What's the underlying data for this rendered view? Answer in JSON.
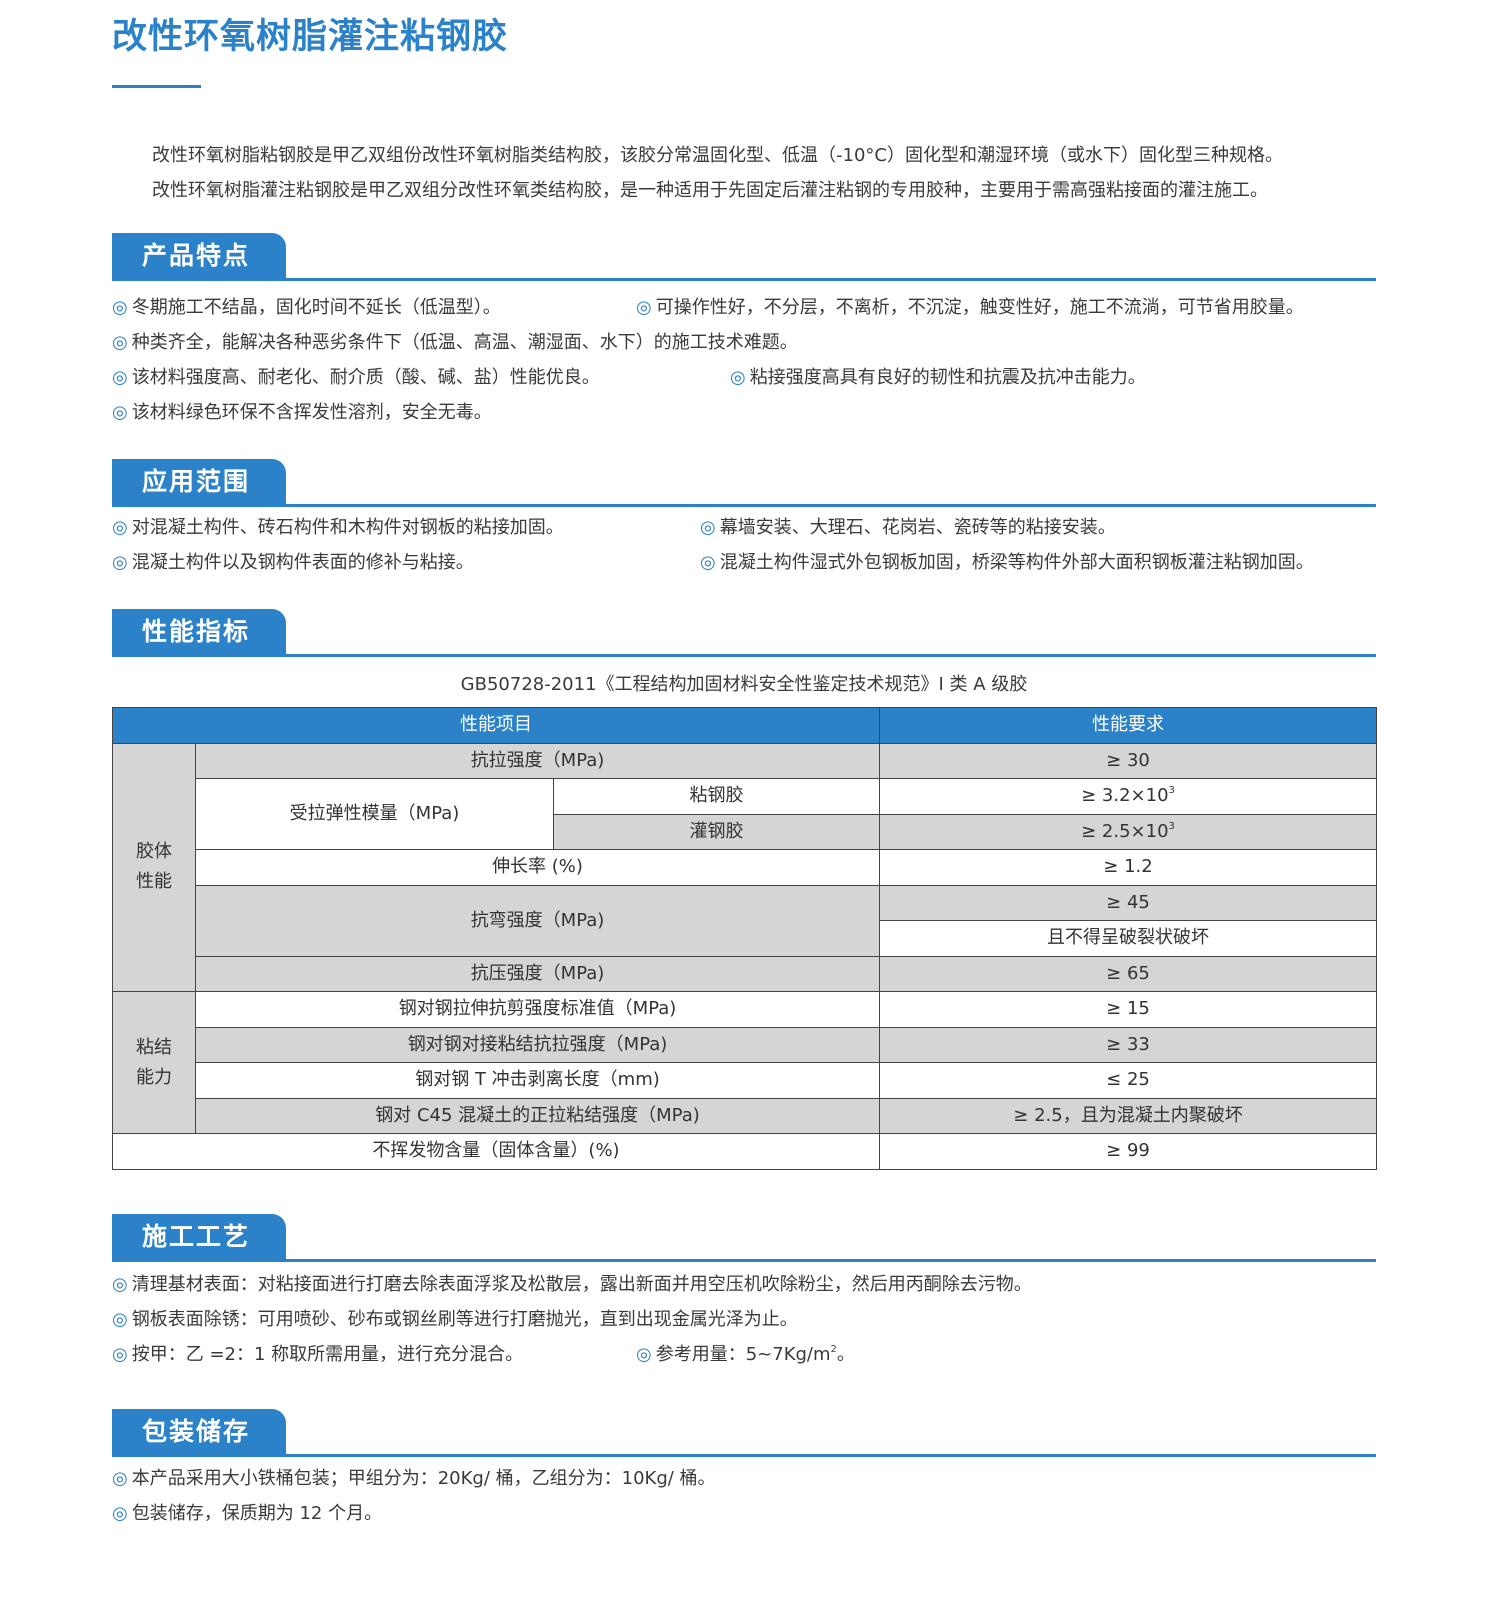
{
  "title": "改性环氧树脂灌注粘钢胶",
  "intro": [
    "改性环氧树脂粘钢胶是甲乙双组份改性环氧树脂类结构胶，该胶分常温固化型、低温（-10°C）固化型和潮湿环境（或水下）固化型三种规格。",
    "改性环氧树脂灌注粘钢胶是甲乙双组分改性环氧类结构胶，是一种适用于先固定后灌注粘钢的专用胶种，主要用于需高强粘接面的灌注施工。"
  ],
  "bullet": "◎",
  "colors": {
    "accent": "#2b82c9",
    "table_gray": "#d5d5d5"
  },
  "features": {
    "heading": "产品特点",
    "items": [
      "冬期施工不结晶，固化时间不延长（低温型）。",
      "可操作性好，不分层，不离析，不沉淀，触变性好，施工不流淌，可节省用胶量。",
      "种类齐全，能解决各种恶劣条件下（低温、高温、潮湿面、水下）的施工技术难题。",
      "该材料强度高、耐老化、耐介质（酸、碱、盐）性能优良。",
      "粘接强度高具有良好的韧性和抗震及抗冲击能力。",
      "该材料绿色环保不含挥发性溶剂，安全无毒。"
    ]
  },
  "application": {
    "heading": "应用范围",
    "items": [
      "对混凝土构件、砖石构件和木构件对钢板的粘接加固。",
      "幕墙安装、大理石、花岗岩、瓷砖等的粘接安装。",
      "混凝土构件以及钢构件表面的修补与粘接。",
      "混凝土构件湿式外包钢板加固，桥梁等构件外部大面积钢板灌注粘钢加固。"
    ]
  },
  "performance": {
    "heading": "性能指标",
    "caption": "GB50728-2011《工程结构加固材料安全性鉴定技术规范》I 类 A 级胶",
    "table": {
      "headers": [
        "性能项目",
        "性能要求"
      ],
      "groups": [
        "胶体性能",
        "粘结能力"
      ],
      "r1": [
        "抗拉强度（MPa)",
        "≥ 30"
      ],
      "r2": [
        "受拉弹性模量（MPa)",
        "粘钢胶",
        "≥ 3.2×10",
        "3"
      ],
      "r3": [
        "灌钢胶",
        "≥ 2.5×10",
        "3"
      ],
      "r4": [
        "伸长率 (%)",
        "≥ 1.2"
      ],
      "r5": [
        "抗弯强度（MPa)",
        "≥ 45"
      ],
      "r6": [
        "且不得呈破裂状破坏"
      ],
      "r7": [
        "抗压强度（MPa)",
        "≥ 65"
      ],
      "r8": [
        "钢对钢拉伸抗剪强度标准值（MPa)",
        "≥ 15"
      ],
      "r9": [
        "钢对钢对接粘结抗拉强度（MPa)",
        "≥ 33"
      ],
      "r10": [
        "钢对钢 T 冲击剥离长度（mm)",
        "≤ 25"
      ],
      "r11": [
        "钢对 C45 混凝土的正拉粘结强度（MPa)",
        "≥ 2.5，且为混凝土内聚破坏"
      ],
      "r12": [
        "不挥发物含量（固体含量）(%)",
        "≥ 99"
      ]
    }
  },
  "process": {
    "heading": "施工工艺",
    "items": [
      "清理基材表面：对粘接面进行打磨去除表面浮浆及松散层，露出新面并用空压机吹除粉尘，然后用丙酮除去污物。",
      "钢板表面除锈：可用喷砂、砂布或钢丝刷等进行打磨抛光，直到出现金属光泽为止。",
      "按甲：乙 =2：1 称取所需用量，进行充分混合。"
    ],
    "dosage": "参考用量：5~7Kg/m",
    "dosage_sup": "2",
    "dosage_end": "。"
  },
  "storage": {
    "heading": "包装储存",
    "items": [
      "本产品采用大小铁桶包装；甲组分为：20Kg/ 桶，乙组分为：10Kg/ 桶。",
      "包装储存，保质期为 12 个月。"
    ]
  }
}
